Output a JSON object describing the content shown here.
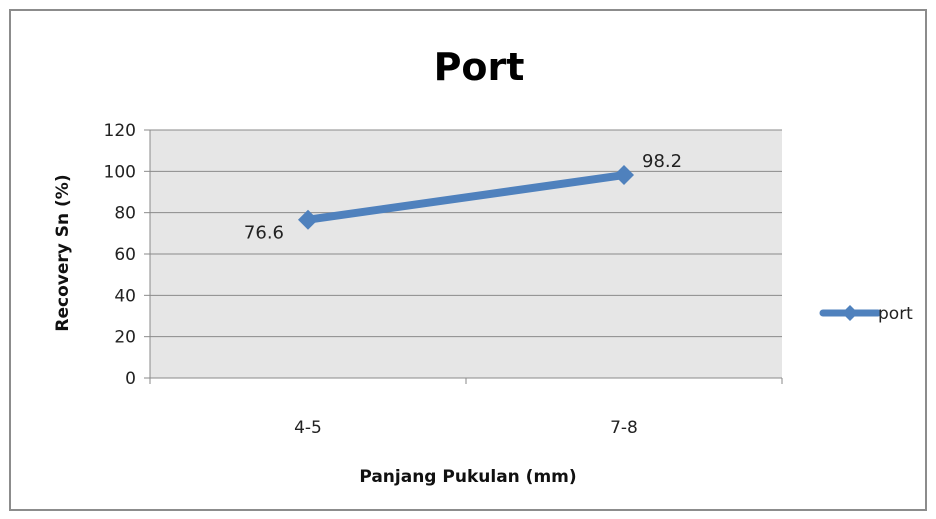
{
  "chart_data": {
    "type": "line",
    "title": "Port",
    "xlabel": "Panjang Pukulan (mm)",
    "ylabel": "Recovery Sn (%)",
    "categories": [
      "4-5",
      "7-8"
    ],
    "series": [
      {
        "name": "port",
        "values": [
          76.6,
          98.2
        ],
        "data_labels": [
          "76.6",
          "98.2"
        ]
      }
    ],
    "ylim": [
      0,
      120
    ],
    "yticks": [
      0,
      20,
      40,
      60,
      80,
      100,
      120
    ],
    "ytick_labels": [
      "0",
      "20",
      "40",
      "60",
      "80",
      "100",
      "120"
    ],
    "grid": true,
    "legend_position": "right",
    "colors": {
      "series": "#4f81bd",
      "plot_background": "#e6e6e6",
      "gridline": "#8a8a8a",
      "frame": "#8c8c8c"
    }
  }
}
